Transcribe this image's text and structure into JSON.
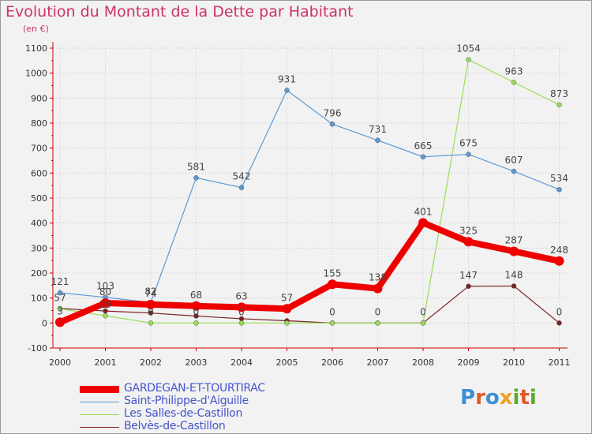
{
  "title": "Evolution du Montant de la Dette par Habitant",
  "subtitle": "(en €)",
  "logo": {
    "letters": [
      "P",
      "r",
      "o",
      "x",
      "i",
      "t",
      "i"
    ],
    "colors": [
      "#3a8fd6",
      "#e05a2a",
      "#3a8fd6",
      "#f0a020",
      "#5aaa2a",
      "#e05a2a",
      "#5aaa2a"
    ]
  },
  "chart_data": {
    "type": "line",
    "x": [
      "2000",
      "2001",
      "2002",
      "2003",
      "2004",
      "2005",
      "2006",
      "2007",
      "2008",
      "2009",
      "2010",
      "2011"
    ],
    "ylim": [
      -100,
      1100
    ],
    "yticks": [
      "-100",
      "0",
      "100",
      "200",
      "300",
      "400",
      "500",
      "600",
      "700",
      "800",
      "900",
      "1000",
      "1100"
    ],
    "series": [
      {
        "name": "GARDEGAN-ET-TOURTIRAC",
        "color": "#ee0000",
        "values": [
          3,
          80,
          74,
          68,
          63,
          57,
          155,
          138,
          401,
          325,
          287,
          248
        ],
        "labels": [
          "3",
          "80",
          "74",
          "68",
          "63",
          "57",
          "155",
          "138",
          "401",
          "325",
          "287",
          "248"
        ]
      },
      {
        "name": "Saint-Philippe-d'Aiguille",
        "color": "#5b9bd5",
        "values": [
          121,
          103,
          82,
          581,
          542,
          931,
          796,
          731,
          665,
          675,
          607,
          534
        ],
        "labels": [
          "121",
          "103",
          "82",
          "581",
          "542",
          "931",
          "796",
          "731",
          "665",
          "675",
          "607",
          "534"
        ]
      },
      {
        "name": "Les Salles-de-Castillon",
        "color": "#99dd55",
        "values": [
          57,
          29,
          0,
          0,
          0,
          0,
          0,
          0,
          0,
          1054,
          963,
          873
        ],
        "labels": [
          "57",
          "29",
          "0",
          "0",
          "0",
          "",
          "",
          "",
          "",
          "1054",
          "963",
          "873"
        ]
      },
      {
        "name": "Belvès-de-Castillon",
        "color": "#7b2020",
        "values": [
          58,
          48,
          40,
          28,
          17,
          9,
          0,
          0,
          0,
          147,
          148,
          0
        ],
        "labels": [
          "",
          "",
          "",
          "",
          "",
          "",
          "0",
          "0",
          "0",
          "147",
          "148",
          "0"
        ]
      }
    ]
  }
}
